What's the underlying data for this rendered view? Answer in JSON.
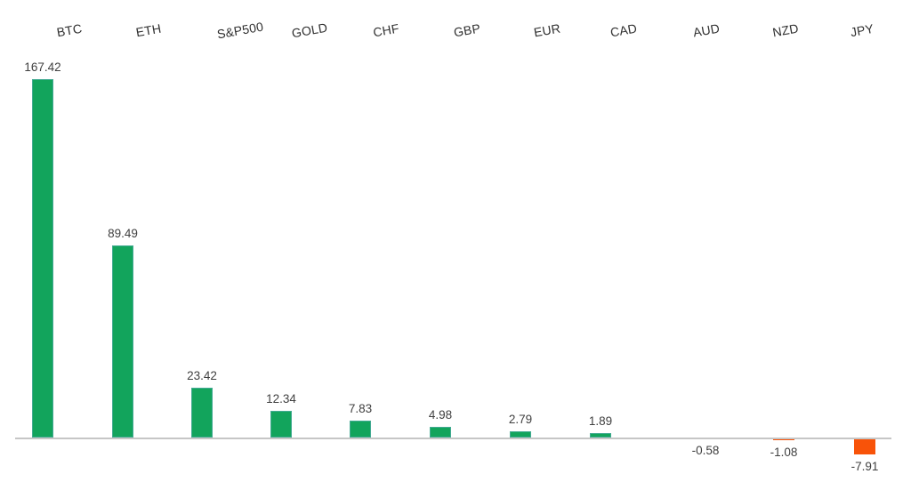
{
  "chart_data": {
    "type": "bar",
    "title": "",
    "xlabel": "",
    "ylabel": "",
    "categories": [
      "BTC",
      "ETH",
      "S&P500",
      "GOLD",
      "CHF",
      "GBP",
      "EUR",
      "CAD",
      "AUD",
      "NZD",
      "JPY"
    ],
    "values": [
      167.42,
      89.49,
      23.42,
      12.34,
      7.83,
      4.98,
      2.79,
      1.89,
      -0.58,
      -1.08,
      -7.91
    ],
    "value_labels": [
      "167.42",
      "89.49",
      "23.42",
      "12.34",
      "7.83",
      "4.98",
      "2.79",
      "1.89",
      "-0.58",
      "-1.08",
      "-7.91"
    ],
    "ylim": [
      -10,
      180
    ],
    "grid": false,
    "legend": "none",
    "category_axis_position": "top",
    "category_label_rotation_deg": -10,
    "colors": {
      "positive_bar": "#12a45c",
      "positive_bar_edge": "#4cab9b",
      "negative_bar": "#f85309",
      "axis_line": "#c6c6c6",
      "category_label_text": "#2f2f2f",
      "value_label_text": "#404040",
      "background": "#ffffff"
    }
  }
}
